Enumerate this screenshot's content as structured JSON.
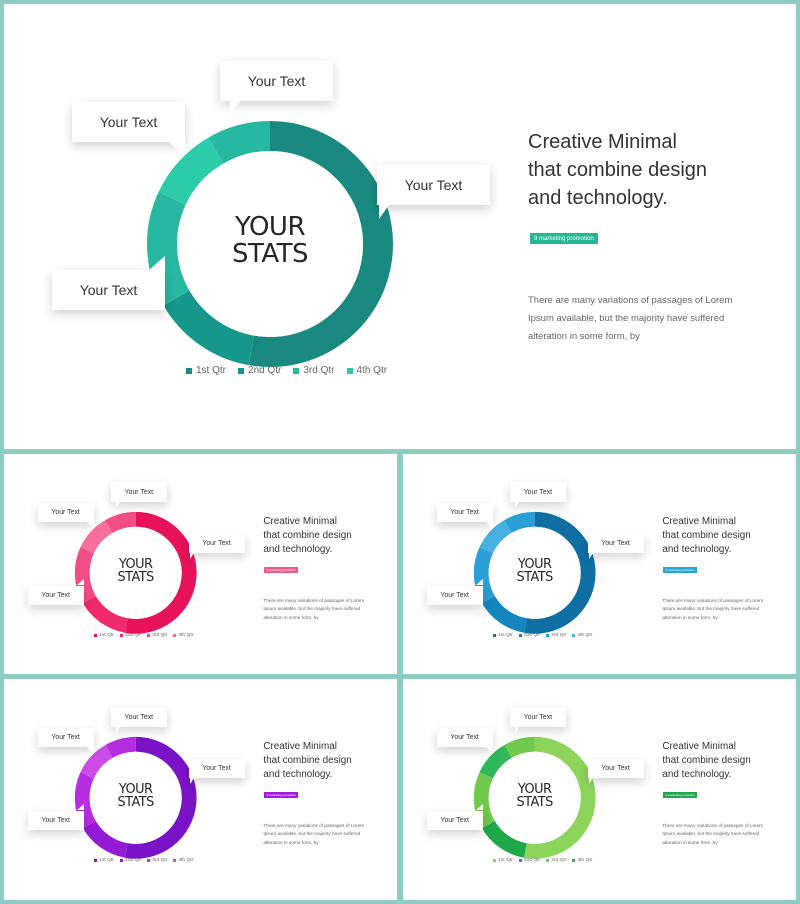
{
  "slides": [
    {
      "title_lines": [
        "Creative Minimal",
        "that combine design",
        "and technology."
      ],
      "tag": "9 marketing  promotion",
      "body": "There are many variations of passages of Lorem Ipsum available, but the majority have suffered alteration in some form, by",
      "center": [
        "YOUR",
        "STATS"
      ],
      "callouts": [
        "Your Text",
        "Your Text",
        "Your Text",
        "Your Text"
      ],
      "legend": [
        "1st Qtr",
        "2nd Qtr",
        "3rd Qtr",
        "4th Qtr"
      ],
      "colors": [
        "#1a8a80",
        "#16978b",
        "#27b8a2",
        "#2ccca8"
      ],
      "tag_color": "#22b894"
    },
    {
      "title_lines": [
        "Creative Minimal",
        "that combine design",
        "and technology."
      ],
      "tag": "9 marketing  promotion",
      "body": "There are many variations of passages of Lorem Ipsum available, but the majority have suffered alteration in some form, by",
      "center": [
        "YOUR",
        "STATS"
      ],
      "callouts": [
        "Your Text",
        "Your Text",
        "Your Text",
        "Your Text"
      ],
      "legend": [
        "1st Qtr",
        "2nd Qtr",
        "3rd Qtr",
        "4th Qtr"
      ],
      "colors": [
        "#e8125a",
        "#f02a6c",
        "#f24e86",
        "#f76f9c"
      ],
      "tag_color": "#f05a8a"
    },
    {
      "title_lines": [
        "Creative Minimal",
        "that combine design",
        "and technology."
      ],
      "tag": "9 marketing  promotion",
      "body": "There are many variations of passages of Lorem Ipsum available, but the majority have suffered alteration in some form, by",
      "center": [
        "YOUR",
        "STATS"
      ],
      "callouts": [
        "Your Text",
        "Your Text",
        "Your Text",
        "Your Text"
      ],
      "legend": [
        "1st Qtr",
        "2nd Qtr",
        "3rd Qtr",
        "4th Qtr"
      ],
      "colors": [
        "#0f6fa3",
        "#1486bd",
        "#2a9fd6",
        "#47b2e2"
      ],
      "tag_color": "#26a5d8"
    },
    {
      "title_lines": [
        "Creative Minimal",
        "that combine design",
        "and technology."
      ],
      "tag": "9 marketing  promotion",
      "body": "There are many variations of passages of Lorem Ipsum available, but the majority have suffered alteration in some form, by",
      "center": [
        "YOUR",
        "STATS"
      ],
      "callouts": [
        "Your Text",
        "Your Text",
        "Your Text",
        "Your Text"
      ],
      "legend": [
        "1st Qtr",
        "2nd Qtr",
        "3rd Qtr",
        "4th Qtr"
      ],
      "colors": [
        "#7a12c8",
        "#951ad6",
        "#b62ee0",
        "#cc4ce6"
      ],
      "tag_color": "#a21bd8"
    },
    {
      "title_lines": [
        "Creative Minimal",
        "that combine design",
        "and technology."
      ],
      "tag": "9 marketing  promotion",
      "body": "There are many variations of passages of Lorem Ipsum available, but the majority have suffered alteration in some form, by",
      "center": [
        "YOUR",
        "STATS"
      ],
      "callouts": [
        "Your Text",
        "Your Text",
        "Your Text",
        "Your Text"
      ],
      "legend": [
        "1st Qtr",
        "2nd Qtr",
        "3rd Qtr",
        "4th Qtr"
      ],
      "colors": [
        "#8cd45a",
        "#1ea84a",
        "#6fca4c",
        "#2fb85a"
      ],
      "tag_color": "#22a84a"
    }
  ]
}
